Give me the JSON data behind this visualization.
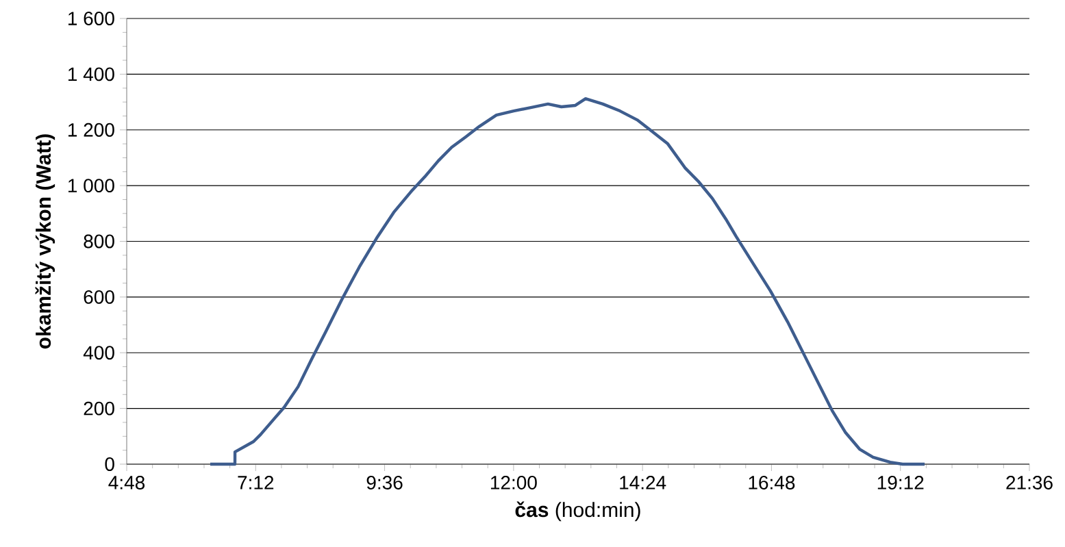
{
  "chart_data": {
    "type": "line",
    "xlabel": "**čas** (hod:min)",
    "ylabel": "okamžitý výkon (Watt)",
    "x": [
      6.355,
      6.814,
      6.815,
      7.16,
      7.29,
      7.54,
      7.73,
      7.99,
      8.24,
      8.5,
      8.82,
      9.13,
      9.45,
      9.77,
      10.09,
      10.35,
      10.6,
      10.85,
      11.11,
      11.36,
      11.68,
      12.0,
      12.32,
      12.64,
      12.89,
      13.15,
      13.34,
      13.66,
      13.98,
      14.3,
      14.55,
      14.87,
      15.19,
      15.44,
      15.7,
      15.95,
      16.14,
      16.46,
      16.78,
      17.1,
      17.42,
      17.74,
      17.93,
      18.18,
      18.44,
      18.69,
      19.01,
      19.24,
      19.65
    ],
    "series": [
      {
        "color": "#3e5d8e",
        "values": [
          0,
          0,
          44,
          81,
          106,
          162,
          204,
          278,
          376,
          474,
          597,
          708,
          811,
          904,
          978,
          1032,
          1089,
          1138,
          1175,
          1212,
          1253,
          1268,
          1280,
          1293,
          1283,
          1288,
          1312,
          1293,
          1268,
          1236,
          1199,
          1150,
          1064,
          1015,
          954,
          880,
          818,
          720,
          622,
          511,
          388,
          265,
          192,
          113,
          54,
          25,
          7,
          0,
          0
        ]
      }
    ],
    "xlim": [
      4.8,
      21.6
    ],
    "xticks": [
      {
        "value": 4.8,
        "label": "4:48"
      },
      {
        "value": 7.2,
        "label": "7:12"
      },
      {
        "value": 9.6,
        "label": "9:36"
      },
      {
        "value": 12.0,
        "label": "12:00"
      },
      {
        "value": 14.4,
        "label": "14:24"
      },
      {
        "value": 16.8,
        "label": "16:48"
      },
      {
        "value": 19.2,
        "label": "19:12"
      },
      {
        "value": 21.6,
        "label": "21:36"
      }
    ],
    "ylim": [
      0,
      1600
    ],
    "yticks": [
      0,
      200,
      400,
      600,
      800,
      {
        "value": 1000,
        "label": "1 000"
      },
      {
        "value": 1200,
        "label": "1 200"
      },
      {
        "value": 1400,
        "label": "1 400"
      },
      {
        "value": 1600,
        "label": "1 600"
      }
    ],
    "grid": "y",
    "marker": "none",
    "line_style": "solid"
  }
}
